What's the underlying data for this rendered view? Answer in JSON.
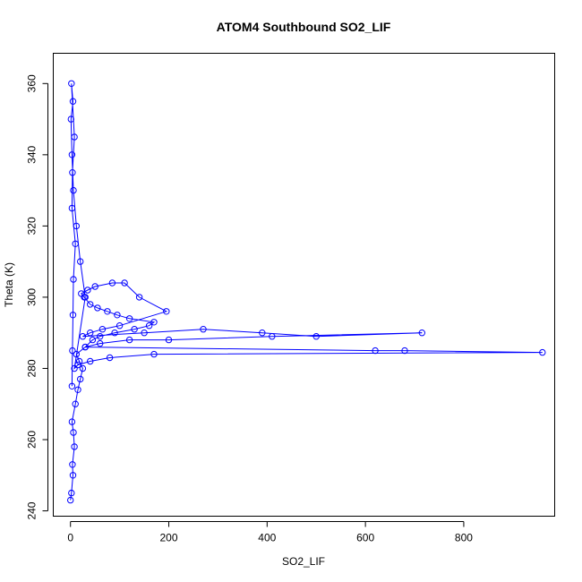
{
  "chart_data": {
    "type": "scatter",
    "title": "ATOM4 Southbound SO2_LIF",
    "xlabel": "SO2_LIF",
    "ylabel": "Theta (K)",
    "xlim": [
      -35,
      985
    ],
    "ylim": [
      238.5,
      368.5
    ],
    "x_ticks": [
      "0",
      "200",
      "400",
      "600",
      "800"
    ],
    "y_ticks": [
      "240",
      "260",
      "280",
      "300",
      "320",
      "340",
      "360"
    ],
    "point_color": "#0000ff",
    "line_color": "#0000ff",
    "style": "points-connected-by-lines",
    "grid": false,
    "series": [
      {
        "x": [
          0,
          2,
          5,
          4,
          8,
          6,
          3,
          10,
          15,
          20,
          25,
          18,
          12,
          30,
          45,
          60,
          90,
          130,
          160,
          170,
          120,
          95,
          75,
          55,
          40,
          28,
          22,
          35,
          50,
          85,
          110,
          140,
          195,
          100,
          65,
          40,
          25,
          150,
          270,
          390,
          500,
          715,
          410,
          200,
          120,
          60,
          30,
          620,
          680,
          960,
          170,
          80,
          40,
          15,
          8,
          30,
          20,
          12,
          6,
          3,
          1,
          5,
          2,
          8,
          4,
          3,
          10,
          6,
          5,
          4,
          3
        ],
        "y": [
          243,
          245,
          250,
          253,
          258,
          262,
          265,
          270,
          274,
          277,
          280,
          282,
          284,
          286,
          288,
          289,
          290,
          291,
          292,
          293,
          294,
          295,
          296,
          297,
          298,
          300,
          301,
          302,
          303,
          304,
          304,
          300,
          296,
          292,
          291,
          290,
          289,
          290,
          291,
          290,
          289,
          290,
          289,
          288,
          288,
          287,
          286,
          285,
          285,
          284.5,
          284,
          283,
          282,
          281,
          280,
          300,
          310,
          320,
          330,
          340,
          350,
          355,
          360,
          345,
          335,
          325,
          315,
          305,
          295,
          285,
          275
        ]
      }
    ]
  }
}
